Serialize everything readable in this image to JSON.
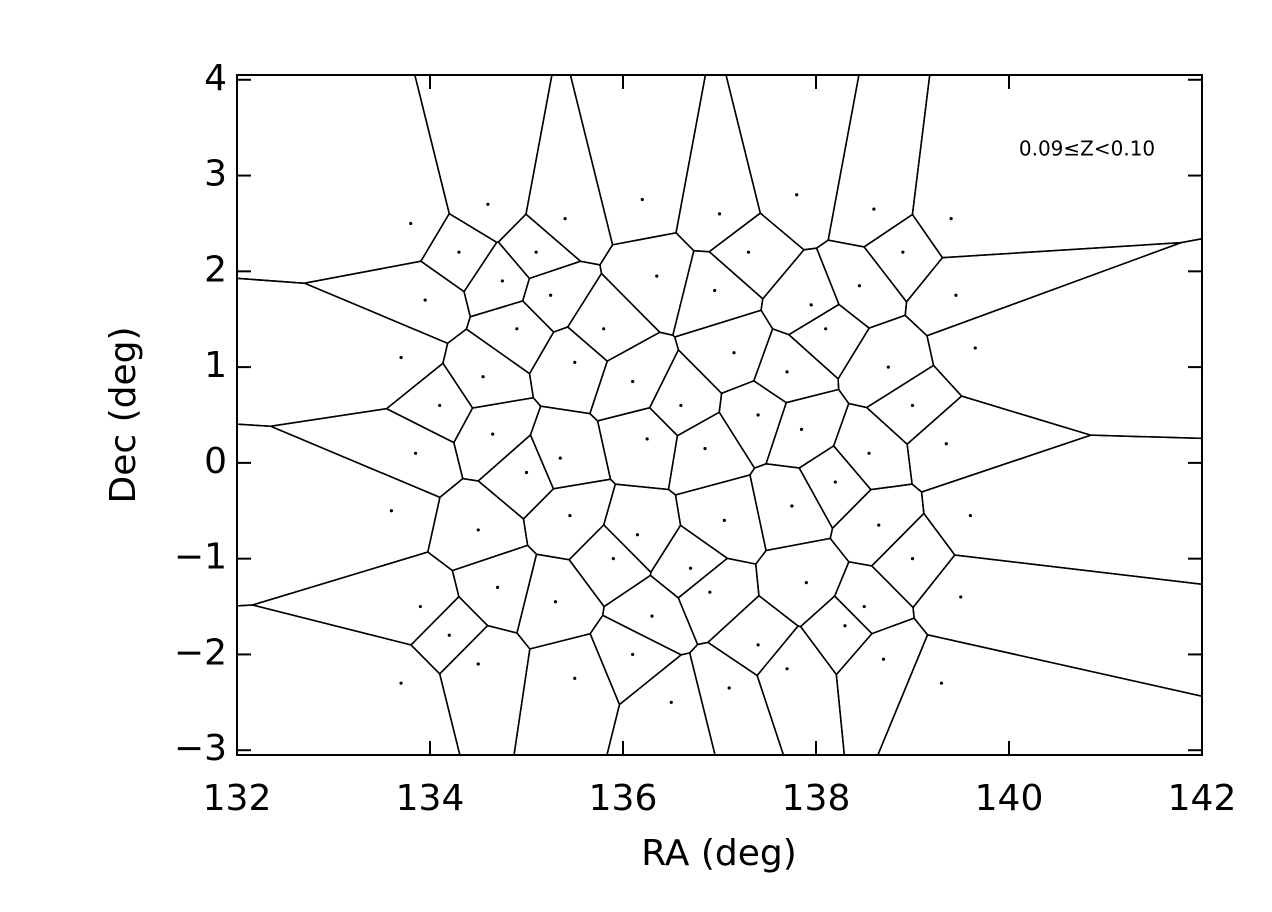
{
  "chart_data": {
    "type": "voronoi",
    "annotation": "0.09≤Z<0.10",
    "xlabel": "RA (deg)",
    "ylabel": "Dec (deg)",
    "xlim": [
      132,
      142
    ],
    "xticks": [
      132,
      134,
      136,
      138,
      140,
      142
    ],
    "ylim": [
      -3.05,
      4.05
    ],
    "yticks": [
      {
        "value": -3,
        "label": "−3"
      },
      {
        "value": -2,
        "label": "−2"
      },
      {
        "value": -1,
        "label": "−1"
      },
      0,
      1,
      2,
      3,
      4
    ],
    "color": "#000000",
    "x": [
      133.7,
      134.5,
      135.5,
      136.1,
      137.1,
      137.7,
      138.7,
      139.3,
      133.9,
      134.7,
      135.3,
      136.3,
      136.9,
      137.9,
      138.5,
      139.5,
      133.6,
      134.5,
      135.45,
      136.15,
      137.05,
      137.75,
      138.65,
      139.6,
      133.85,
      134.65,
      135.35,
      136.25,
      136.85,
      137.85,
      138.55,
      139.35,
      133.7,
      134.55,
      135.5,
      136.1,
      137.15,
      137.7,
      138.75,
      139.65,
      133.95,
      134.75,
      135.25,
      136.35,
      136.95,
      137.95,
      138.45,
      139.45,
      133.8,
      134.6,
      135.4,
      136.2,
      137.0,
      137.8,
      138.6,
      139.4,
      134.2,
      135.9,
      137.4,
      138.2,
      139.0,
      134.1,
      135.8,
      137.3,
      138.9,
      135.0,
      136.6,
      138.1,
      134.3,
      136.7,
      139.0,
      135.1,
      137.4,
      138.3,
      134.9,
      136.5
    ],
    "values": [
      -2.3,
      -2.1,
      -2.25,
      -2.0,
      -2.35,
      -2.15,
      -2.05,
      -2.3,
      -1.5,
      -1.3,
      -1.45,
      -1.6,
      -1.35,
      -1.25,
      -1.5,
      -1.4,
      -0.5,
      -0.7,
      -0.55,
      -0.75,
      -0.6,
      -0.45,
      -0.65,
      -0.55,
      0.1,
      0.3,
      0.05,
      0.25,
      0.15,
      0.35,
      0.1,
      0.2,
      1.1,
      0.9,
      1.05,
      0.85,
      1.15,
      0.95,
      1.0,
      1.2,
      1.7,
      1.9,
      1.75,
      1.95,
      1.8,
      1.65,
      1.85,
      1.75,
      2.5,
      2.7,
      2.55,
      2.75,
      2.6,
      2.8,
      2.65,
      2.55,
      -1.8,
      -1.0,
      -1.9,
      -0.2,
      0.6,
      0.6,
      1.4,
      2.2,
      2.2,
      -0.1,
      0.6,
      1.4,
      2.2,
      -1.1,
      -1.0,
      2.2,
      0.5,
      -1.7,
      1.4,
      -2.5
    ]
  }
}
